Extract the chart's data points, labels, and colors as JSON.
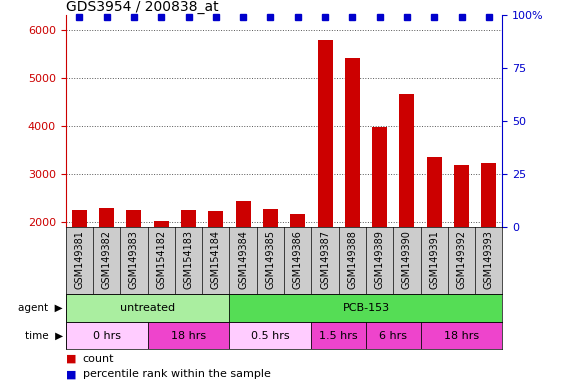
{
  "title": "GDS3954 / 200838_at",
  "samples": [
    "GSM149381",
    "GSM149382",
    "GSM149383",
    "GSM154182",
    "GSM154183",
    "GSM154184",
    "GSM149384",
    "GSM149385",
    "GSM149386",
    "GSM149387",
    "GSM149388",
    "GSM149389",
    "GSM149390",
    "GSM149391",
    "GSM149392",
    "GSM149393"
  ],
  "counts": [
    2250,
    2300,
    2250,
    2020,
    2250,
    2230,
    2430,
    2280,
    2160,
    5780,
    5420,
    3980,
    4660,
    3350,
    3180,
    3230
  ],
  "bar_color": "#cc0000",
  "dot_color": "#0000cc",
  "ylim_left": [
    1900,
    6300
  ],
  "ylim_right": [
    0,
    100
  ],
  "yticks_left": [
    2000,
    3000,
    4000,
    5000,
    6000
  ],
  "yticks_right": [
    0,
    25,
    50,
    75,
    100
  ],
  "agent_groups": [
    {
      "label": "untreated",
      "start": 0,
      "end": 6,
      "color": "#aaeea0"
    },
    {
      "label": "PCB-153",
      "start": 6,
      "end": 16,
      "color": "#55dd55"
    }
  ],
  "time_groups": [
    {
      "label": "0 hrs",
      "start": 0,
      "end": 3,
      "color": "#ffccff"
    },
    {
      "label": "18 hrs",
      "start": 3,
      "end": 6,
      "color": "#ee44cc"
    },
    {
      "label": "0.5 hrs",
      "start": 6,
      "end": 9,
      "color": "#ffccff"
    },
    {
      "label": "1.5 hrs",
      "start": 9,
      "end": 11,
      "color": "#ee44cc"
    },
    {
      "label": "6 hrs",
      "start": 11,
      "end": 13,
      "color": "#ee44cc"
    },
    {
      "label": "18 hrs",
      "start": 13,
      "end": 16,
      "color": "#ee44cc"
    }
  ],
  "bar_width": 0.55,
  "grid_color": "#555555",
  "bg_color": "#ffffff",
  "title_fontsize": 10,
  "tick_fontsize": 8,
  "label_fontsize": 7,
  "row_label_fontsize": 8
}
